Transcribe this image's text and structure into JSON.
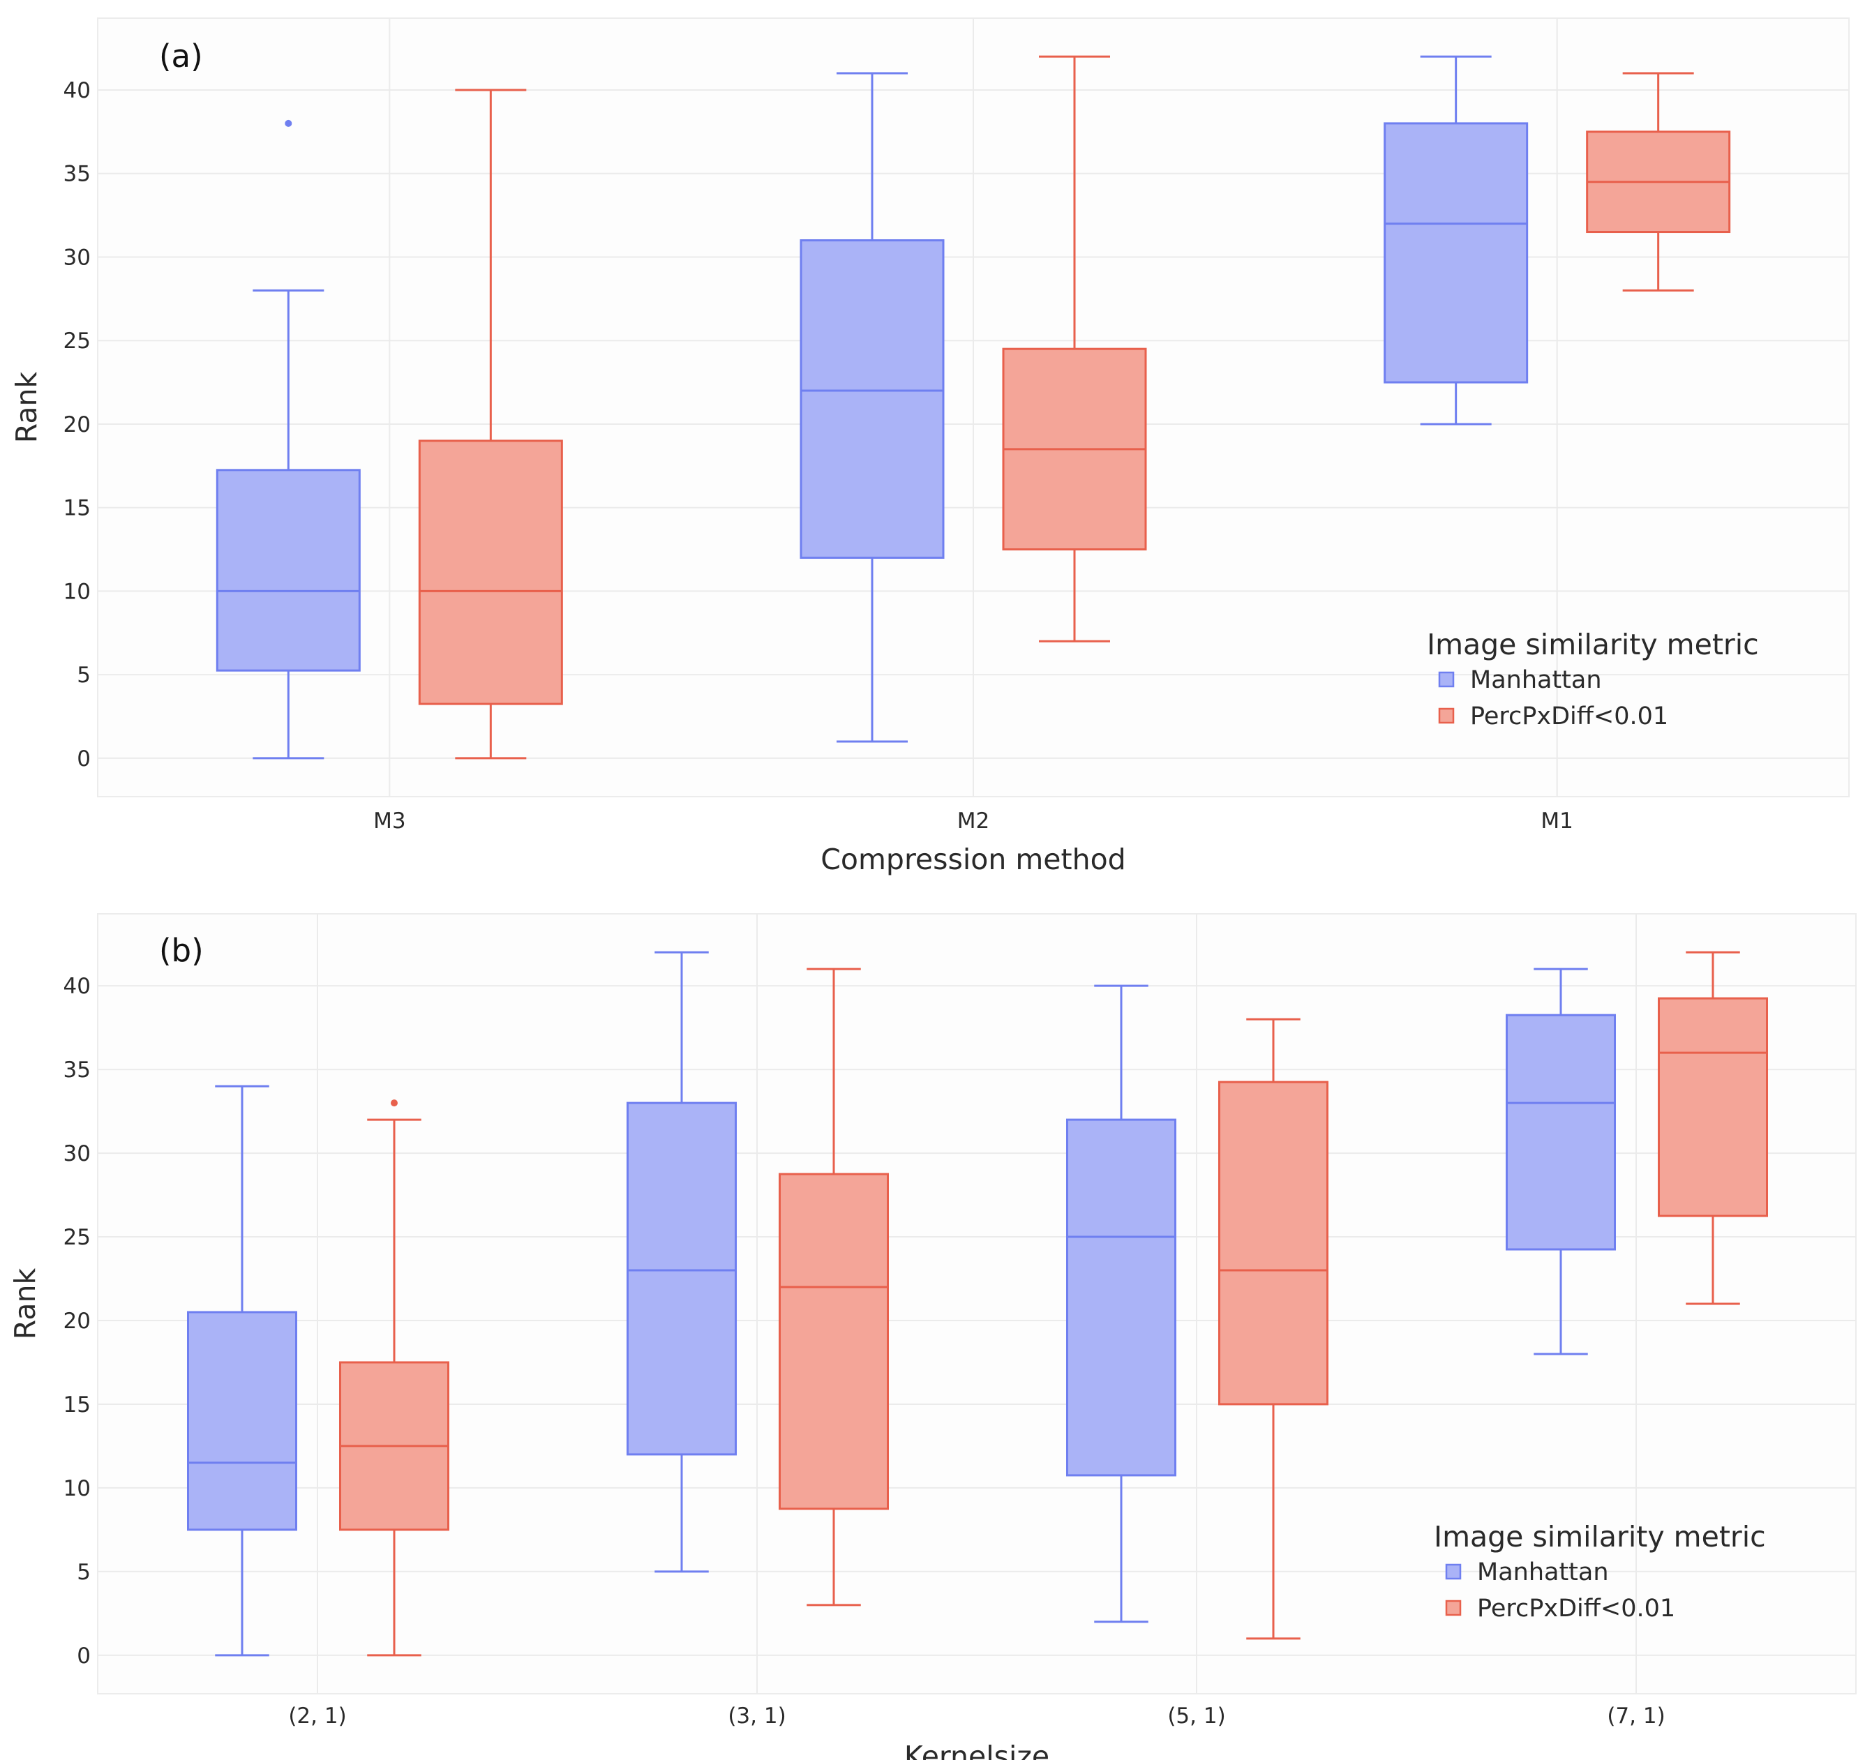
{
  "chart_data": [
    {
      "type": "box",
      "panel_label": "(a)",
      "xlabel": "Compression method",
      "ylabel": "Rank",
      "ylim": [
        -2.3,
        44.3
      ],
      "yticks": [
        0,
        5,
        10,
        15,
        20,
        25,
        30,
        35,
        40
      ],
      "categories": [
        "M3",
        "M2",
        "M1"
      ],
      "legend": {
        "title": "Image similarity metric",
        "position": "bottom-right",
        "entries": [
          "Manhattan",
          "PercPxDiff<0.01"
        ]
      },
      "series": [
        {
          "name": "Manhattan",
          "color": "#6f7ff0",
          "fill": "#aab3f7",
          "boxes": [
            {
              "category": "M3",
              "min": 0,
              "q1": 5.25,
              "median": 10,
              "q3": 17.25,
              "max": 28,
              "outliers": [
                38
              ]
            },
            {
              "category": "M2",
              "min": 1,
              "q1": 12,
              "median": 22,
              "q3": 31,
              "max": 41,
              "outliers": []
            },
            {
              "category": "M1",
              "min": 20,
              "q1": 22.5,
              "median": 32,
              "q3": 38,
              "max": 42,
              "outliers": []
            }
          ]
        },
        {
          "name": "PercPxDiff<0.01",
          "color": "#e8604c",
          "fill": "#f4a598",
          "boxes": [
            {
              "category": "M3",
              "min": 0,
              "q1": 3.25,
              "median": 10,
              "q3": 19,
              "max": 40,
              "outliers": []
            },
            {
              "category": "M2",
              "min": 7,
              "q1": 12.5,
              "median": 18.5,
              "q3": 24.5,
              "max": 42,
              "outliers": []
            },
            {
              "category": "M1",
              "min": 28,
              "q1": 31.5,
              "median": 34.5,
              "q3": 37.5,
              "max": 41,
              "outliers": []
            }
          ]
        }
      ]
    },
    {
      "type": "box",
      "panel_label": "(b)",
      "xlabel": "Kernelsize",
      "ylabel": "Rank",
      "ylim": [
        -2.3,
        44.3
      ],
      "yticks": [
        0,
        5,
        10,
        15,
        20,
        25,
        30,
        35,
        40
      ],
      "categories": [
        "(2, 1)",
        "(3, 1)",
        "(5, 1)",
        "(7, 1)"
      ],
      "legend": {
        "title": "Image similarity metric",
        "position": "bottom-right",
        "entries": [
          "Manhattan",
          "PercPxDiff<0.01"
        ]
      },
      "series": [
        {
          "name": "Manhattan",
          "color": "#6f7ff0",
          "fill": "#aab3f7",
          "boxes": [
            {
              "category": "(2, 1)",
              "min": 0,
              "q1": 7.5,
              "median": 11.5,
              "q3": 20.5,
              "max": 34,
              "outliers": []
            },
            {
              "category": "(3, 1)",
              "min": 5,
              "q1": 12,
              "median": 23,
              "q3": 33,
              "max": 42,
              "outliers": []
            },
            {
              "category": "(5, 1)",
              "min": 2,
              "q1": 10.75,
              "median": 25,
              "q3": 32,
              "max": 40,
              "outliers": []
            },
            {
              "category": "(7, 1)",
              "min": 18,
              "q1": 24.25,
              "median": 33,
              "q3": 38.25,
              "max": 41,
              "outliers": []
            }
          ]
        },
        {
          "name": "PercPxDiff<0.01",
          "color": "#e8604c",
          "fill": "#f4a598",
          "boxes": [
            {
              "category": "(2, 1)",
              "min": 0,
              "q1": 7.5,
              "median": 12.5,
              "q3": 17.5,
              "max": 32,
              "outliers": [
                33
              ]
            },
            {
              "category": "(3, 1)",
              "min": 3,
              "q1": 8.75,
              "median": 22,
              "q3": 28.75,
              "max": 41,
              "outliers": []
            },
            {
              "category": "(5, 1)",
              "min": 1,
              "q1": 15,
              "median": 23,
              "q3": 34.25,
              "max": 38,
              "outliers": []
            },
            {
              "category": "(7, 1)",
              "min": 21,
              "q1": 26.25,
              "median": 36,
              "q3": 39.25,
              "max": 42,
              "outliers": []
            }
          ]
        }
      ]
    }
  ]
}
